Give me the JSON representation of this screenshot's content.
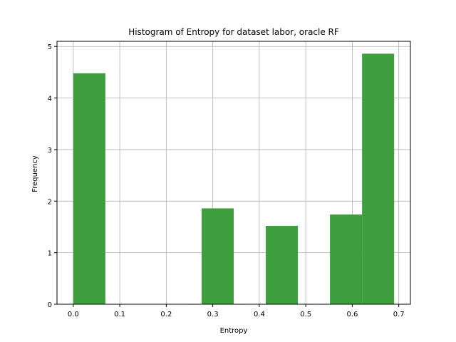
{
  "chart_data": {
    "type": "bar",
    "title": "Histogram of Entropy for dataset labor, oracle RF",
    "xlabel": "Entropy",
    "ylabel": "Frequency",
    "xlim": [
      -0.035,
      0.725
    ],
    "ylim": [
      0,
      5.1
    ],
    "xticks": [
      0.0,
      0.1,
      0.2,
      0.3,
      0.4,
      0.5,
      0.6,
      0.7
    ],
    "xtick_labels": [
      "0.0",
      "0.1",
      "0.2",
      "0.3",
      "0.4",
      "0.5",
      "0.6",
      "0.7"
    ],
    "yticks": [
      0,
      1,
      2,
      3,
      4,
      5
    ],
    "ytick_labels": [
      "0",
      "1",
      "2",
      "3",
      "4",
      "5"
    ],
    "grid": true,
    "bar_color": "#3f9f3f",
    "grid_color": "#b0b0b0",
    "bins": [
      {
        "x0": 0.0,
        "x1": 0.069,
        "value": 4.48
      },
      {
        "x0": 0.069,
        "x1": 0.138,
        "value": 0
      },
      {
        "x0": 0.138,
        "x1": 0.207,
        "value": 0
      },
      {
        "x0": 0.207,
        "x1": 0.276,
        "value": 0
      },
      {
        "x0": 0.276,
        "x1": 0.345,
        "value": 1.86
      },
      {
        "x0": 0.345,
        "x1": 0.414,
        "value": 0
      },
      {
        "x0": 0.414,
        "x1": 0.483,
        "value": 1.52
      },
      {
        "x0": 0.483,
        "x1": 0.552,
        "value": 0
      },
      {
        "x0": 0.552,
        "x1": 0.621,
        "value": 1.74
      },
      {
        "x0": 0.621,
        "x1": 0.69,
        "value": 4.86
      }
    ]
  }
}
